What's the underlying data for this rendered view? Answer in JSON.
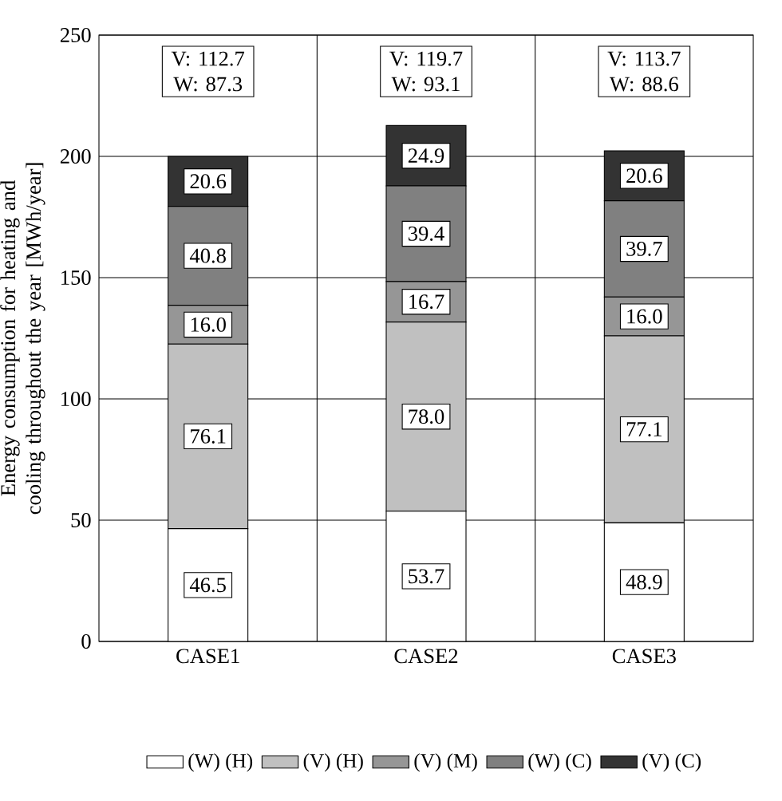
{
  "chart_data": {
    "type": "bar",
    "stacked": true,
    "ylabel": "Energy consumption for heating and cooling throughout the year [MWh/year]",
    "categories": [
      "CASE1",
      "CASE2",
      "CASE3"
    ],
    "series": [
      {
        "name": "(W) (H)",
        "color": "#ffffff",
        "values": [
          46.5,
          53.7,
          48.9
        ],
        "value_labels": [
          "46.5",
          "53.7",
          "48.9"
        ]
      },
      {
        "name": "(V) (H)",
        "color": "#c0c0c0",
        "values": [
          76.1,
          78.0,
          77.1
        ],
        "value_labels": [
          "76.1",
          "78.0",
          "77.1"
        ]
      },
      {
        "name": "(V) (M)",
        "color": "#969696",
        "values": [
          16.0,
          16.7,
          16.0
        ],
        "value_labels": [
          "16.0",
          "16.7",
          "16.0"
        ]
      },
      {
        "name": "(W) (C)",
        "color": "#808080",
        "values": [
          40.8,
          39.4,
          39.7
        ],
        "value_labels": [
          "40.8",
          "39.4",
          "39.7"
        ]
      },
      {
        "name": "(V) (C)",
        "color": "#333333",
        "values": [
          20.6,
          24.9,
          20.6
        ],
        "value_labels": [
          "20.6",
          "24.9",
          "20.6"
        ]
      }
    ],
    "ylim": [
      0,
      250
    ],
    "yticks": [
      0,
      50,
      100,
      150,
      200,
      250
    ],
    "grid": true,
    "legend": "bottom",
    "totals": [
      "V: 112.7 W: 87.3",
      "V: 119.7 W: 93.1",
      "V: 113.7 W: 88.6"
    ]
  }
}
